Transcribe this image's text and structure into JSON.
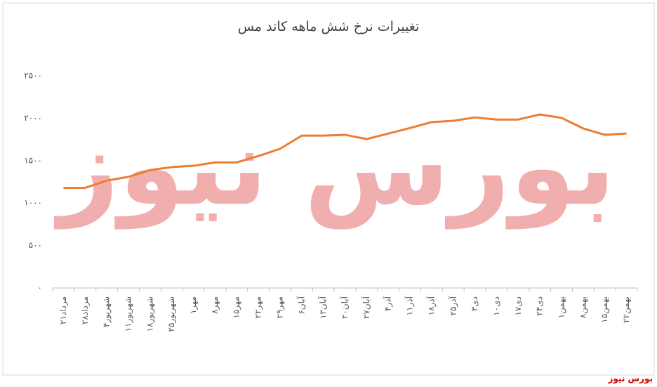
{
  "chart_data": {
    "type": "line",
    "title": "تغییرات نرخ شش ماهه کاتد مس",
    "categories": [
      "۲۱مرداد",
      "۲۸مرداد",
      "۴شهریور",
      "۱۱شهریور",
      "۱۸شهریور",
      "۲۵شهریور",
      "۱مهر",
      "۸مهر",
      "۱۵مهر",
      "۲۲مهر",
      "۲۹مهر",
      "۶آبان",
      "۱۳آبان",
      "۲۰آبان",
      "۲۷آبان",
      "۴آذر",
      "۱۱آذر",
      "۱۸آذر",
      "۲۵آذر",
      "۳دی",
      "۱۰دی",
      "۱۷دی",
      "۲۴دی",
      "۱بهمن",
      "۸بهمن",
      "۱۵بهمن",
      "۲۲بهمن"
    ],
    "values": [
      1180,
      1180,
      1265,
      1310,
      1390,
      1425,
      1440,
      1480,
      1480,
      1555,
      1640,
      1795,
      1795,
      1805,
      1755,
      1820,
      1885,
      1955,
      1970,
      2010,
      1985,
      1985,
      2045,
      2005,
      1880,
      1805,
      1820
    ],
    "color": "#ed7d31",
    "ylim": [
      0,
      2500
    ],
    "yticks": [
      {
        "value": 0,
        "label": "۰"
      },
      {
        "value": 500,
        "label": "۵۰۰"
      },
      {
        "value": 1000,
        "label": "۱۰۰۰"
      },
      {
        "value": 1500,
        "label": "۱۵۰۰"
      },
      {
        "value": 2000,
        "label": "۲۰۰۰"
      },
      {
        "value": 2500,
        "label": "۲۵۰۰"
      }
    ],
    "grid": false,
    "watermark": "بورس نیوز",
    "source": "بورس نیوز"
  }
}
